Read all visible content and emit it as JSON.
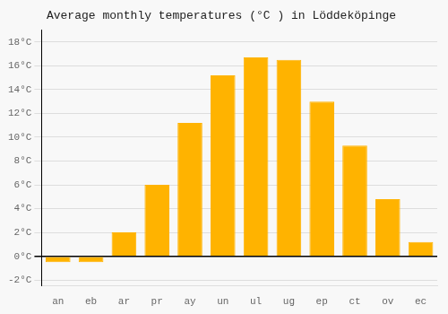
{
  "chart_data": {
    "type": "bar",
    "title": "Average monthly temperatures (°C ) in Löddeköpinge",
    "categories": [
      "an",
      "eb",
      "ar",
      "pr",
      "ay",
      "un",
      "ul",
      "ug",
      "ep",
      "ct",
      "ov",
      "ec"
    ],
    "values": [
      -0.5,
      -0.5,
      2.0,
      6.0,
      11.2,
      15.2,
      16.7,
      16.5,
      13.0,
      9.3,
      4.8,
      1.2
    ],
    "color": "#FFB300",
    "ylim": [
      -2.5,
      19
    ],
    "yticks": [
      {
        "value": -2,
        "label": "-2°C"
      },
      {
        "value": 0,
        "label": "0°C"
      },
      {
        "value": 2,
        "label": "2°C"
      },
      {
        "value": 4,
        "label": "4°C"
      },
      {
        "value": 6,
        "label": "6°C"
      },
      {
        "value": 8,
        "label": "8°C"
      },
      {
        "value": 10,
        "label": "10°C"
      },
      {
        "value": 12,
        "label": "12°C"
      },
      {
        "value": 14,
        "label": "14°C"
      },
      {
        "value": 16,
        "label": "16°C"
      },
      {
        "value": 18,
        "label": "18°C"
      }
    ],
    "grid": true
  }
}
